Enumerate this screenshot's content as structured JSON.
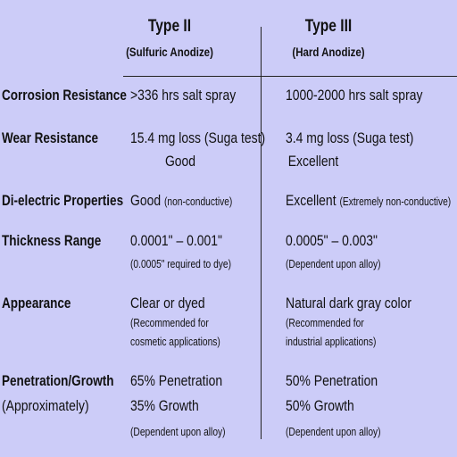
{
  "header": {
    "columns": [
      {
        "title": "Type II",
        "subtitle": "(Sulfuric Anodize)"
      },
      {
        "title": "Type III",
        "subtitle": "(Hard Anodize)"
      }
    ]
  },
  "table": {
    "rows": [
      {
        "label": "Corrosion Resistance",
        "cells": [
          {
            "lines": [
              ">336 hrs salt spray"
            ]
          },
          {
            "lines": [
              "1000-2000 hrs salt spray"
            ]
          }
        ]
      },
      {
        "label": "Wear Resistance",
        "cells": [
          {
            "lines": [
              "15.4 mg loss (Suga test)",
              "Good"
            ]
          },
          {
            "lines": [
              "3.4 mg loss (Suga test)",
              "Excellent"
            ]
          }
        ]
      },
      {
        "label": "Di-electric Properties",
        "cells": [
          {
            "lines": [
              "Good"
            ],
            "notes": [
              "(non-conductive)"
            ]
          },
          {
            "lines": [
              "Excellent"
            ],
            "notes": [
              "(Extremely non-conductive)"
            ]
          }
        ]
      },
      {
        "label": "Thickness Range",
        "cells": [
          {
            "lines": [
              "0.0001\" – 0.001\""
            ],
            "notes": [
              "(0.0005\" required to dye)"
            ]
          },
          {
            "lines": [
              "0.0005\" – 0.003\""
            ],
            "notes": [
              "(Dependent upon alloy)"
            ]
          }
        ]
      },
      {
        "label": "Appearance",
        "cells": [
          {
            "lines": [
              "Clear or dyed"
            ],
            "notes": [
              "(Recommended for",
              "cosmetic applications)"
            ]
          },
          {
            "lines": [
              "Natural dark gray color"
            ],
            "notes": [
              "(Recommended for",
              "industrial applications)"
            ]
          }
        ]
      },
      {
        "label": "Penetration/Growth",
        "sublabel": "(Approximately)",
        "cells": [
          {
            "lines": [
              "65% Penetration",
              "35% Growth"
            ],
            "notes": [
              "(Dependent upon alloy)"
            ]
          },
          {
            "lines": [
              "50% Penetration",
              "50% Growth"
            ],
            "notes": [
              "(Dependent upon alloy)"
            ]
          }
        ]
      }
    ]
  }
}
